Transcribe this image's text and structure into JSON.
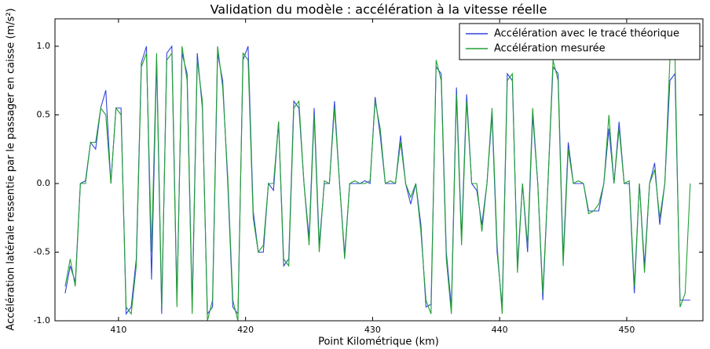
{
  "chart_data": {
    "type": "line",
    "title": "Validation du modèle : accélération à la vitesse réelle",
    "x_label": "Point Kilométrique (km)",
    "y_label": "Accélération latérale ressentie par le passager en caisse (m/s²)",
    "x": [
      405.8,
      406.2,
      406.6,
      407.0,
      407.4,
      407.8,
      408.2,
      408.6,
      409.0,
      409.4,
      409.8,
      410.2,
      410.6,
      411.0,
      411.4,
      411.8,
      412.2,
      412.6,
      413.0,
      413.4,
      413.8,
      414.2,
      414.6,
      415.0,
      415.4,
      415.8,
      416.2,
      416.6,
      417.0,
      417.4,
      417.8,
      418.2,
      418.6,
      419.0,
      419.4,
      419.8,
      420.2,
      420.6,
      421.0,
      421.4,
      421.8,
      422.2,
      422.6,
      423.0,
      423.4,
      423.8,
      424.2,
      424.6,
      425.0,
      425.4,
      425.8,
      426.2,
      426.6,
      427.0,
      427.4,
      427.8,
      428.2,
      428.6,
      429.0,
      429.4,
      429.8,
      430.2,
      430.6,
      431.0,
      431.4,
      431.8,
      432.2,
      432.6,
      433.0,
      433.4,
      433.8,
      434.2,
      434.6,
      435.0,
      435.4,
      435.8,
      436.2,
      436.6,
      437.0,
      437.4,
      437.8,
      438.2,
      438.6,
      439.0,
      439.4,
      439.8,
      440.2,
      440.6,
      441.0,
      441.4,
      441.8,
      442.2,
      442.6,
      443.0,
      443.4,
      443.8,
      444.2,
      444.6,
      445.0,
      445.4,
      445.8,
      446.2,
      446.6,
      447.0,
      447.4,
      447.8,
      448.2,
      448.6,
      449.0,
      449.4,
      449.8,
      450.2,
      450.6,
      451.0,
      451.4,
      451.8,
      452.2,
      452.6,
      453.0,
      453.4,
      453.8,
      454.2,
      454.6,
      455.0
    ],
    "series": [
      {
        "name": "Accélération avec le tracé théorique",
        "color": "#3344dd",
        "values": [
          -0.8,
          -0.6,
          -0.72,
          0.0,
          0.02,
          0.3,
          0.25,
          0.55,
          0.68,
          0.0,
          0.55,
          0.55,
          -0.95,
          -0.9,
          -0.55,
          0.88,
          1.0,
          -0.7,
          0.9,
          -0.95,
          0.95,
          1.0,
          -0.85,
          0.95,
          0.8,
          -0.9,
          0.95,
          0.55,
          -0.95,
          -0.9,
          0.95,
          0.75,
          0.0,
          -0.9,
          -0.95,
          0.9,
          1.0,
          -0.2,
          -0.5,
          -0.5,
          0.0,
          -0.05,
          0.45,
          -0.6,
          -0.55,
          0.6,
          0.55,
          0.0,
          -0.4,
          0.55,
          -0.45,
          0.0,
          0.0,
          0.6,
          0.0,
          -0.52,
          0.0,
          0.0,
          0.0,
          0.02,
          0.0,
          0.63,
          0.35,
          0.0,
          0.0,
          0.0,
          0.35,
          0.0,
          -0.15,
          0.0,
          -0.3,
          -0.9,
          -0.88,
          0.85,
          0.8,
          -0.5,
          -0.9,
          0.7,
          -0.4,
          0.65,
          0.0,
          -0.05,
          -0.3,
          0.0,
          0.5,
          -0.5,
          -0.9,
          0.8,
          0.75,
          -0.6,
          0.0,
          -0.5,
          0.5,
          0.0,
          -0.85,
          0.0,
          0.85,
          0.8,
          -0.55,
          0.3,
          0.0,
          0.0,
          0.0,
          -0.2,
          -0.2,
          -0.2,
          0.0,
          0.4,
          0.0,
          0.45,
          0.0,
          0.0,
          -0.8,
          0.0,
          -0.6,
          0.0,
          0.15,
          -0.3,
          0.0,
          0.75,
          0.8,
          -0.85,
          -0.85,
          -0.85
        ]
      },
      {
        "name": "Accélération mesurée",
        "color": "#22a033",
        "values": [
          -0.75,
          -0.55,
          -0.75,
          0.0,
          0.0,
          0.3,
          0.3,
          0.55,
          0.5,
          0.0,
          0.55,
          0.5,
          -0.9,
          -0.95,
          -0.6,
          0.85,
          0.95,
          -0.5,
          0.95,
          -0.9,
          0.9,
          0.95,
          -0.9,
          1.0,
          0.75,
          -0.95,
          0.9,
          0.6,
          -1.0,
          -0.85,
          1.0,
          0.7,
          0.05,
          -0.85,
          -1.0,
          0.95,
          0.9,
          -0.25,
          -0.5,
          -0.45,
          0.0,
          0.0,
          0.45,
          -0.55,
          -0.6,
          0.55,
          0.6,
          0.0,
          -0.45,
          0.5,
          -0.5,
          0.02,
          0.0,
          0.55,
          0.0,
          -0.55,
          0.0,
          0.02,
          0.0,
          0.0,
          0.02,
          0.6,
          0.4,
          0.0,
          0.02,
          0.0,
          0.3,
          0.0,
          -0.1,
          0.0,
          -0.35,
          -0.85,
          -0.95,
          0.9,
          0.75,
          -0.55,
          -0.95,
          0.65,
          -0.45,
          0.6,
          0.0,
          0.0,
          -0.35,
          0.0,
          0.55,
          -0.45,
          -0.95,
          0.75,
          0.8,
          -0.65,
          0.0,
          -0.45,
          0.55,
          0.0,
          -0.8,
          0.0,
          0.9,
          0.75,
          -0.6,
          0.25,
          0.0,
          0.02,
          0.0,
          -0.22,
          -0.2,
          -0.15,
          0.0,
          0.5,
          0.0,
          0.4,
          0.0,
          0.02,
          -0.75,
          0.0,
          -0.65,
          0.0,
          0.1,
          -0.25,
          0.0,
          0.9,
          0.92,
          -0.9,
          -0.8,
          0.0
        ]
      }
    ],
    "xlim": [
      405,
      456
    ],
    "xticks": [
      410,
      420,
      430,
      440,
      450
    ],
    "ylim": [
      -1,
      1.2
    ],
    "yticks": [
      {
        "value": -1,
        "label": "-1.0"
      },
      -0.5,
      {
        "value": 0,
        "label": "0.0"
      },
      0.5,
      {
        "value": 1,
        "label": "1.0"
      }
    ],
    "grid": false,
    "legend": "upper right"
  }
}
